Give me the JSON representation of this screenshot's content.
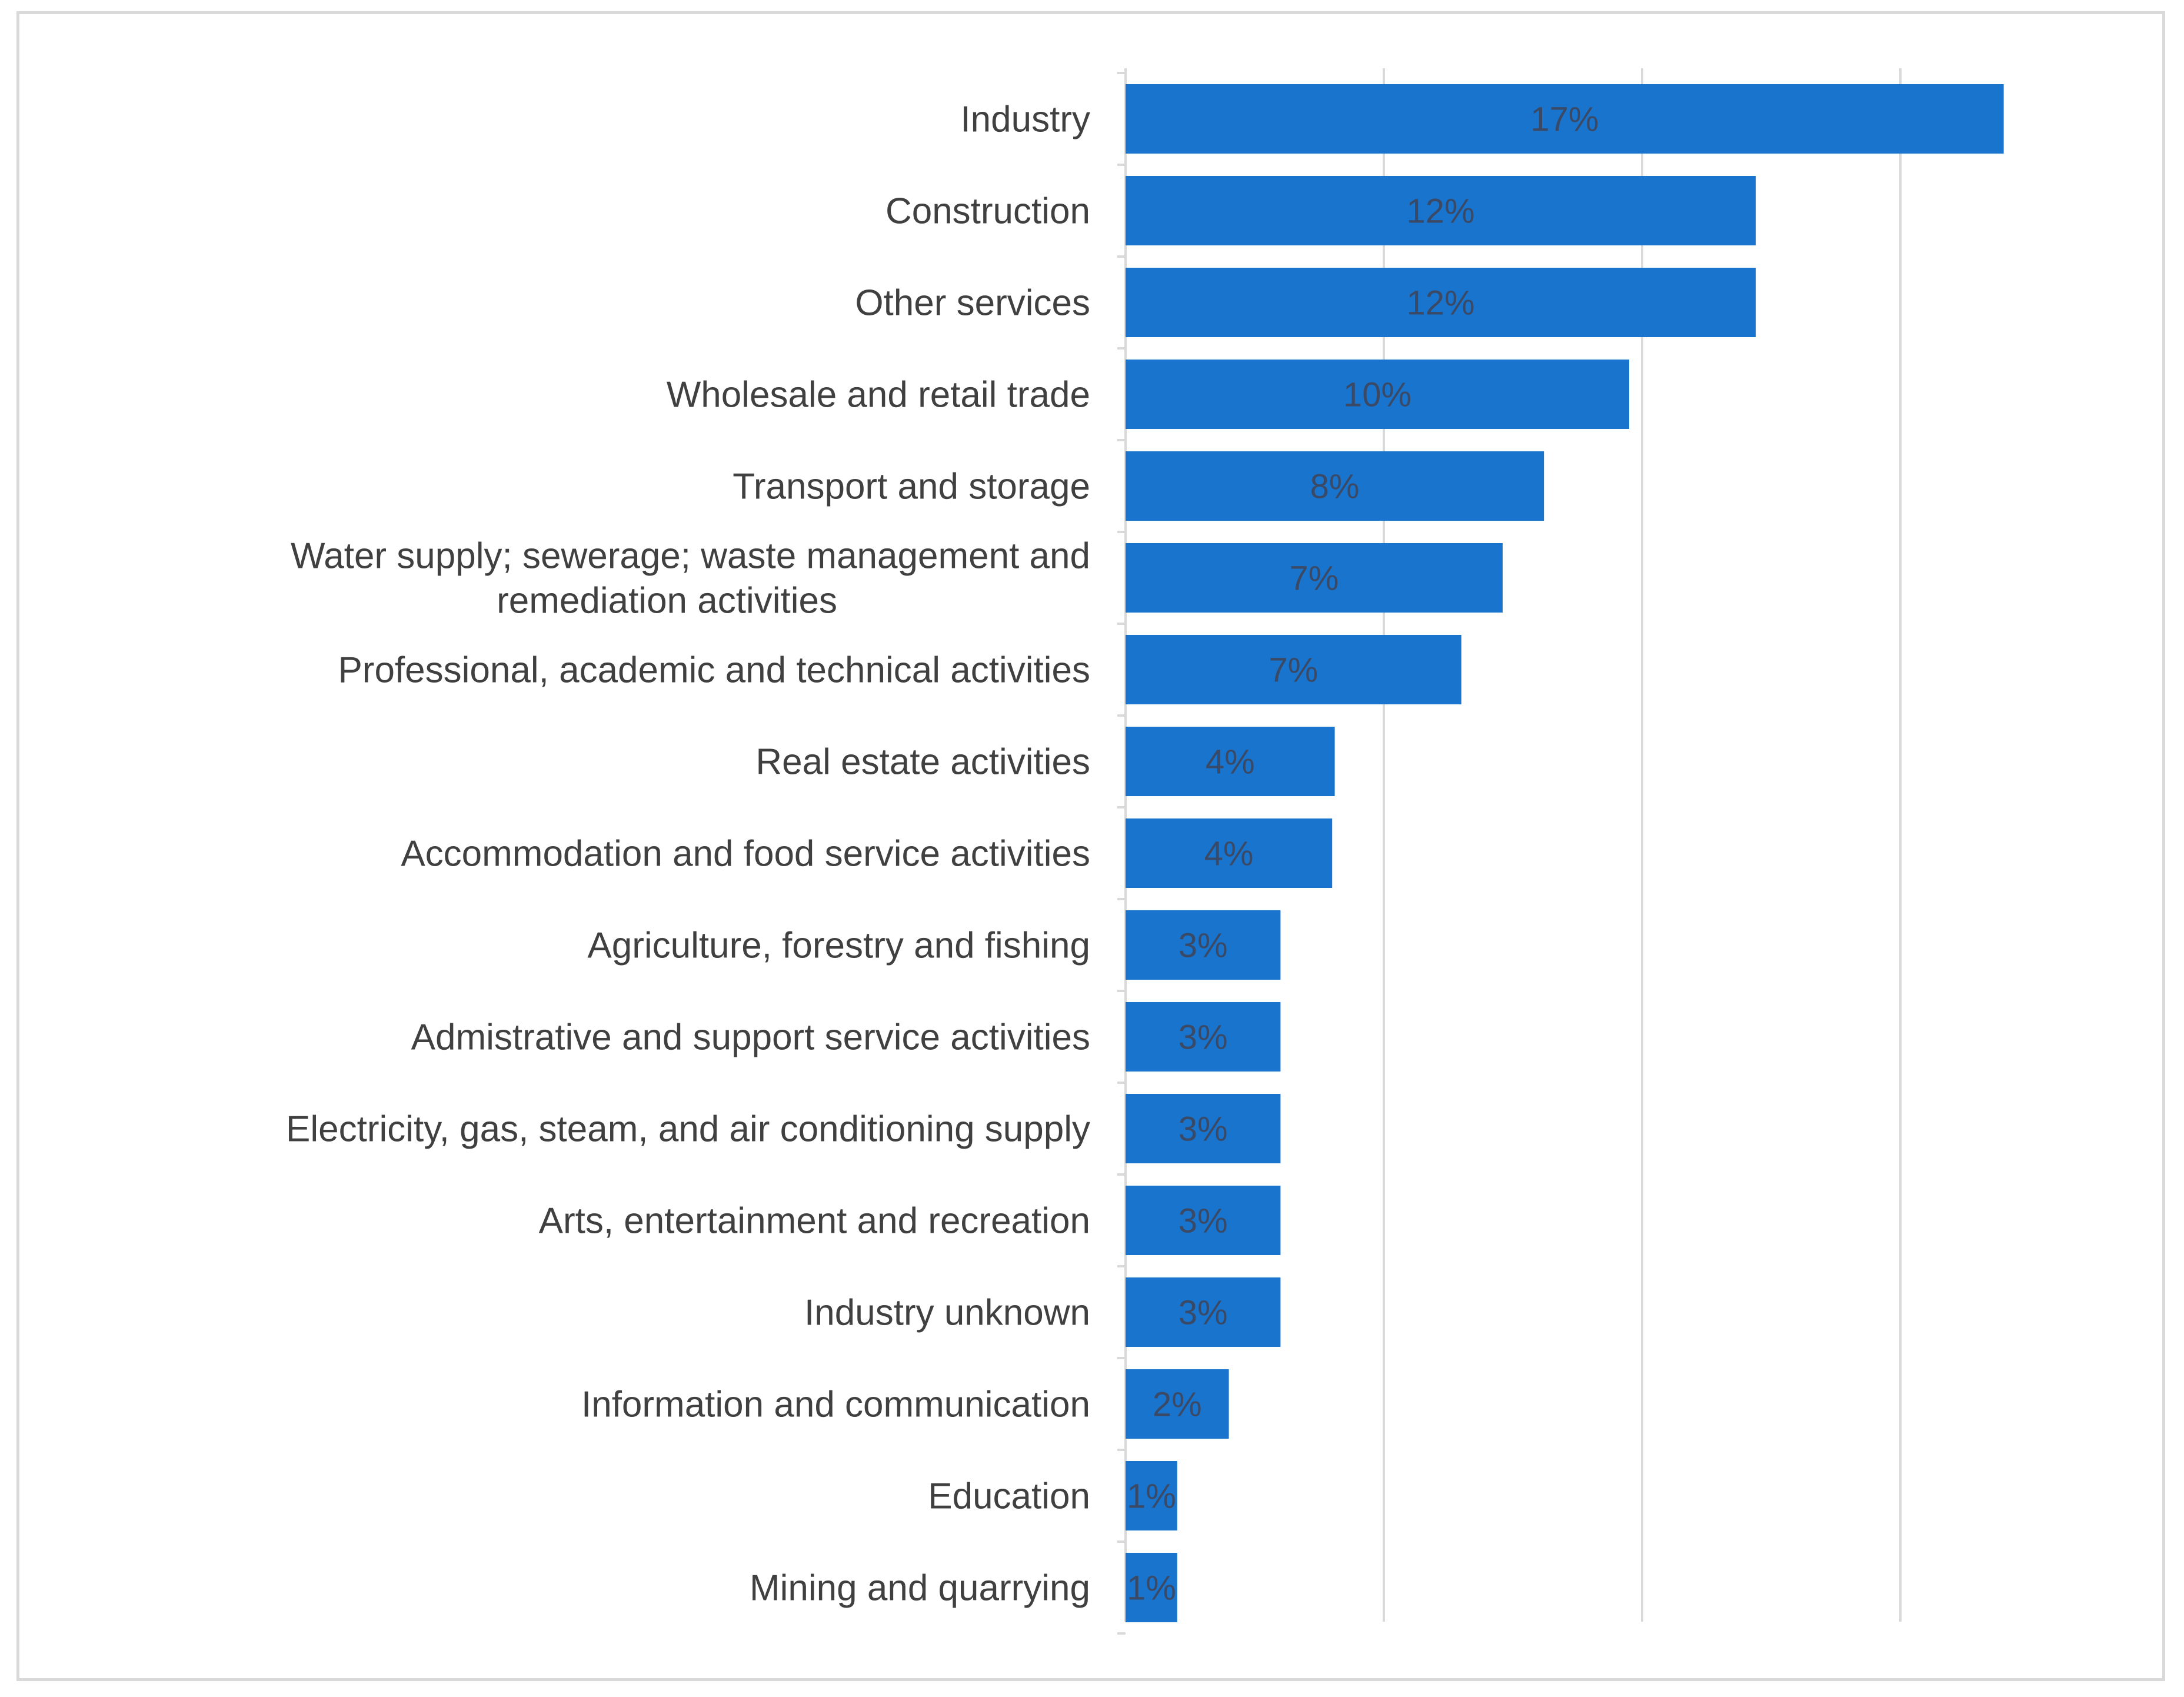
{
  "chart_data": {
    "type": "bar",
    "orientation": "horizontal",
    "title": "",
    "xlabel": "",
    "ylabel": "",
    "xlim": [
      0,
      20
    ],
    "gridlines": [
      0,
      5,
      10,
      15
    ],
    "grid": true,
    "legend": "none",
    "bar_color": "#1874CD",
    "label_color": "#404040",
    "value_label_color": "#3a4a66",
    "grid_color": "#d9d9d9",
    "categories": [
      [
        "Industry"
      ],
      [
        "Construction"
      ],
      [
        "Other services"
      ],
      [
        "Wholesale and retail trade"
      ],
      [
        "Transport and storage"
      ],
      [
        "Water supply; sewerage; waste management and",
        "remediation activities"
      ],
      [
        "Professional, academic and technical activities"
      ],
      [
        "Real estate activities"
      ],
      [
        "Accommodation and food service activities"
      ],
      [
        "Agriculture, forestry and fishing"
      ],
      [
        "Admistrative and support service activities"
      ],
      [
        "Electricity, gas, steam, and air conditioning supply"
      ],
      [
        "Arts, entertainment and recreation"
      ],
      [
        "Industry unknown"
      ],
      [
        "Information and communication"
      ],
      [
        "Education"
      ],
      [
        "Mining and quarrying"
      ]
    ],
    "values": [
      17,
      12.2,
      12.2,
      9.75,
      8.1,
      7.3,
      6.5,
      4.05,
      4.0,
      3.0,
      3.0,
      3.0,
      3.0,
      3.0,
      2.0,
      1.0,
      1.0
    ],
    "value_labels": [
      "17%",
      "12%",
      "12%",
      "10%",
      "8%",
      "7%",
      "7%",
      "4%",
      "4%",
      "3%",
      "3%",
      "3%",
      "3%",
      "3%",
      "2%",
      "1%",
      "1%"
    ]
  }
}
